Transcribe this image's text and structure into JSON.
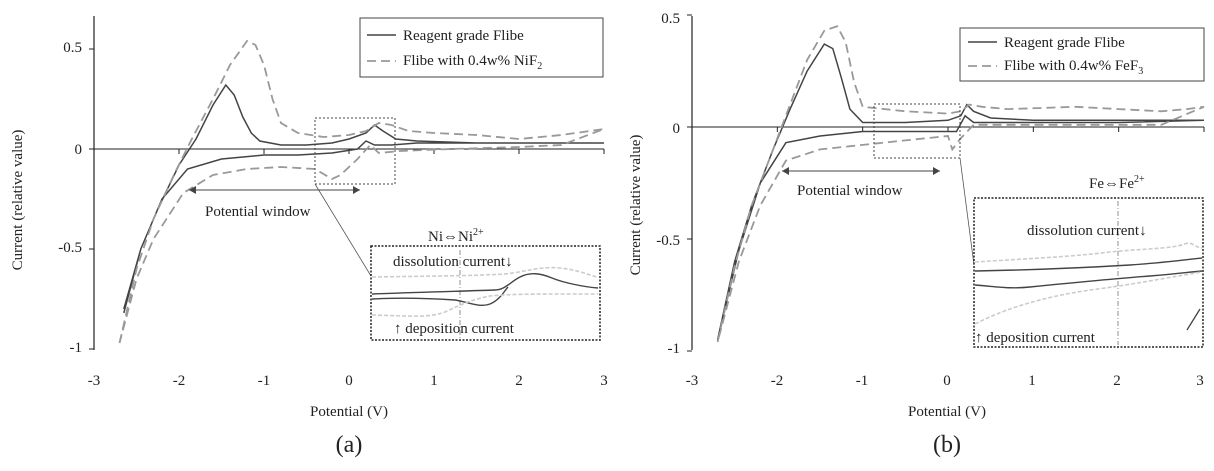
{
  "chart_data": [
    {
      "panel_label": "(a)",
      "type": "line",
      "xlabel": "Potential (V)",
      "ylabel": "Current (relative value)",
      "xlim": [
        -3,
        3
      ],
      "ylim": [
        -1,
        0.6
      ],
      "xticks": [
        "-3",
        "-2",
        "-1",
        "0",
        "1",
        "2",
        "3"
      ],
      "yticks": [
        "-1",
        "-0.5",
        "0",
        "0.5"
      ],
      "legend_position": "top-right",
      "legend": [
        "Reagent grade Flibe",
        "Flibe with 0.4w% NiF",
        "2"
      ],
      "annotations": {
        "potential_window": "Potential window",
        "reaction": "Ni⇔Ni",
        "reaction_sup": "2+",
        "dissolution": "dissolution current↓",
        "deposition": "↑ deposition current"
      },
      "series": [
        {
          "style": "solid",
          "color": "#444444",
          "points": [
            [
              -2.65,
              -0.8
            ],
            [
              -2.45,
              -0.5
            ],
            [
              -2.25,
              -0.3
            ],
            [
              -2.0,
              -0.08
            ],
            [
              -1.8,
              0.05
            ],
            [
              -1.6,
              0.22
            ],
            [
              -1.45,
              0.32
            ],
            [
              -1.35,
              0.27
            ],
            [
              -1.25,
              0.16
            ],
            [
              -1.15,
              0.08
            ],
            [
              -1.05,
              0.04
            ],
            [
              -0.8,
              0.02
            ],
            [
              -0.5,
              0.02
            ],
            [
              -0.2,
              0.03
            ],
            [
              0.0,
              0.05
            ],
            [
              0.2,
              0.08
            ],
            [
              0.3,
              0.12
            ],
            [
              0.4,
              0.09
            ],
            [
              0.55,
              0.05
            ],
            [
              0.8,
              0.04
            ],
            [
              1.5,
              0.03
            ],
            [
              3.0,
              0.03
            ],
            [
              2.5,
              0.03
            ],
            [
              1.5,
              0.03
            ],
            [
              0.8,
              0.03
            ],
            [
              0.5,
              0.02
            ],
            [
              0.3,
              0.02
            ],
            [
              0.2,
              0.04
            ],
            [
              0.1,
              0.0
            ],
            [
              -0.2,
              -0.02
            ],
            [
              -0.6,
              -0.03
            ],
            [
              -1.0,
              -0.03
            ],
            [
              -1.5,
              -0.05
            ],
            [
              -1.9,
              -0.1
            ],
            [
              -2.2,
              -0.25
            ],
            [
              -2.45,
              -0.5
            ],
            [
              -2.65,
              -0.82
            ]
          ]
        },
        {
          "style": "dashed",
          "color": "#999999",
          "points": [
            [
              -2.7,
              -0.97
            ],
            [
              -2.5,
              -0.6
            ],
            [
              -2.3,
              -0.35
            ],
            [
              -2.05,
              -0.12
            ],
            [
              -1.85,
              0.05
            ],
            [
              -1.6,
              0.25
            ],
            [
              -1.4,
              0.42
            ],
            [
              -1.2,
              0.54
            ],
            [
              -1.1,
              0.52
            ],
            [
              -1.0,
              0.42
            ],
            [
              -0.9,
              0.25
            ],
            [
              -0.8,
              0.13
            ],
            [
              -0.6,
              0.08
            ],
            [
              -0.3,
              0.06
            ],
            [
              0.0,
              0.07
            ],
            [
              0.2,
              0.09
            ],
            [
              0.35,
              0.13
            ],
            [
              0.5,
              0.12
            ],
            [
              0.7,
              0.09
            ],
            [
              1.0,
              0.08
            ],
            [
              1.5,
              0.07
            ],
            [
              2.0,
              0.05
            ],
            [
              2.5,
              0.07
            ],
            [
              3.0,
              0.1
            ],
            [
              2.5,
              0.02
            ],
            [
              2.0,
              0.01
            ],
            [
              1.2,
              0.0
            ],
            [
              0.6,
              -0.01
            ],
            [
              0.35,
              -0.02
            ],
            [
              0.25,
              0.02
            ],
            [
              0.1,
              -0.05
            ],
            [
              -0.1,
              -0.13
            ],
            [
              -0.2,
              -0.15
            ],
            [
              -0.4,
              -0.1
            ],
            [
              -0.8,
              -0.09
            ],
            [
              -1.2,
              -0.1
            ],
            [
              -1.6,
              -0.13
            ],
            [
              -1.95,
              -0.22
            ],
            [
              -2.3,
              -0.45
            ],
            [
              -2.5,
              -0.65
            ],
            [
              -2.7,
              -0.97
            ]
          ]
        }
      ]
    },
    {
      "panel_label": "(b)",
      "type": "line",
      "xlabel": "Potential (V)",
      "ylabel": "Current (relative value)",
      "xlim": [
        -3,
        3
      ],
      "ylim": [
        -1,
        0.5
      ],
      "xticks": [
        "-3",
        "-2",
        "-1",
        "0",
        "1",
        "2",
        "3"
      ],
      "yticks": [
        "-1",
        "-0.5",
        "0",
        "0.5"
      ],
      "legend_position": "top-right",
      "legend": [
        "Reagent grade Flibe",
        "Flibe with 0.4w% FeF",
        "3"
      ],
      "annotations": {
        "potential_window": "Potential window",
        "reaction": "Fe⇔Fe",
        "reaction_sup": "2+",
        "dissolution": "dissolution current↓",
        "deposition": "↑ deposition current"
      },
      "series": [
        {
          "style": "solid",
          "color": "#444444",
          "points": [
            [
              -2.7,
              -0.95
            ],
            [
              -2.5,
              -0.6
            ],
            [
              -2.3,
              -0.35
            ],
            [
              -2.05,
              -0.1
            ],
            [
              -1.85,
              0.08
            ],
            [
              -1.65,
              0.25
            ],
            [
              -1.45,
              0.37
            ],
            [
              -1.35,
              0.35
            ],
            [
              -1.25,
              0.22
            ],
            [
              -1.15,
              0.08
            ],
            [
              -1.0,
              0.02
            ],
            [
              -0.5,
              0.02
            ],
            [
              0.0,
              0.03
            ],
            [
              0.15,
              0.05
            ],
            [
              0.22,
              0.1
            ],
            [
              0.3,
              0.07
            ],
            [
              0.5,
              0.04
            ],
            [
              1.0,
              0.03
            ],
            [
              2.0,
              0.03
            ],
            [
              3.0,
              0.03
            ],
            [
              2.0,
              0.02
            ],
            [
              1.0,
              0.02
            ],
            [
              0.3,
              0.02
            ],
            [
              0.2,
              0.05
            ],
            [
              0.1,
              -0.02
            ],
            [
              -0.5,
              -0.02
            ],
            [
              -1.0,
              -0.02
            ],
            [
              -1.5,
              -0.04
            ],
            [
              -1.9,
              -0.07
            ],
            [
              -2.2,
              -0.25
            ],
            [
              -2.45,
              -0.55
            ],
            [
              -2.7,
              -0.95
            ]
          ]
        },
        {
          "style": "dashed",
          "color": "#999999",
          "points": [
            [
              -2.7,
              -0.96
            ],
            [
              -2.5,
              -0.62
            ],
            [
              -2.3,
              -0.35
            ],
            [
              -2.05,
              -0.1
            ],
            [
              -1.85,
              0.1
            ],
            [
              -1.65,
              0.3
            ],
            [
              -1.45,
              0.43
            ],
            [
              -1.3,
              0.45
            ],
            [
              -1.2,
              0.38
            ],
            [
              -1.1,
              0.2
            ],
            [
              -1.0,
              0.09
            ],
            [
              -0.5,
              0.07
            ],
            [
              0.0,
              0.06
            ],
            [
              0.15,
              0.07
            ],
            [
              0.25,
              0.1
            ],
            [
              0.4,
              0.09
            ],
            [
              0.7,
              0.08
            ],
            [
              1.5,
              0.09
            ],
            [
              2.0,
              0.08
            ],
            [
              2.5,
              0.07
            ],
            [
              2.8,
              0.08
            ],
            [
              3.0,
              0.09
            ],
            [
              2.5,
              0.01
            ],
            [
              1.5,
              0.01
            ],
            [
              0.8,
              0.01
            ],
            [
              0.3,
              0.01
            ],
            [
              0.15,
              -0.05
            ],
            [
              0.05,
              -0.1
            ],
            [
              0.0,
              -0.04
            ],
            [
              -0.5,
              -0.06
            ],
            [
              -1.0,
              -0.08
            ],
            [
              -1.5,
              -0.1
            ],
            [
              -1.9,
              -0.15
            ],
            [
              -2.2,
              -0.35
            ],
            [
              -2.45,
              -0.6
            ],
            [
              -2.7,
              -0.96
            ]
          ]
        }
      ]
    }
  ]
}
